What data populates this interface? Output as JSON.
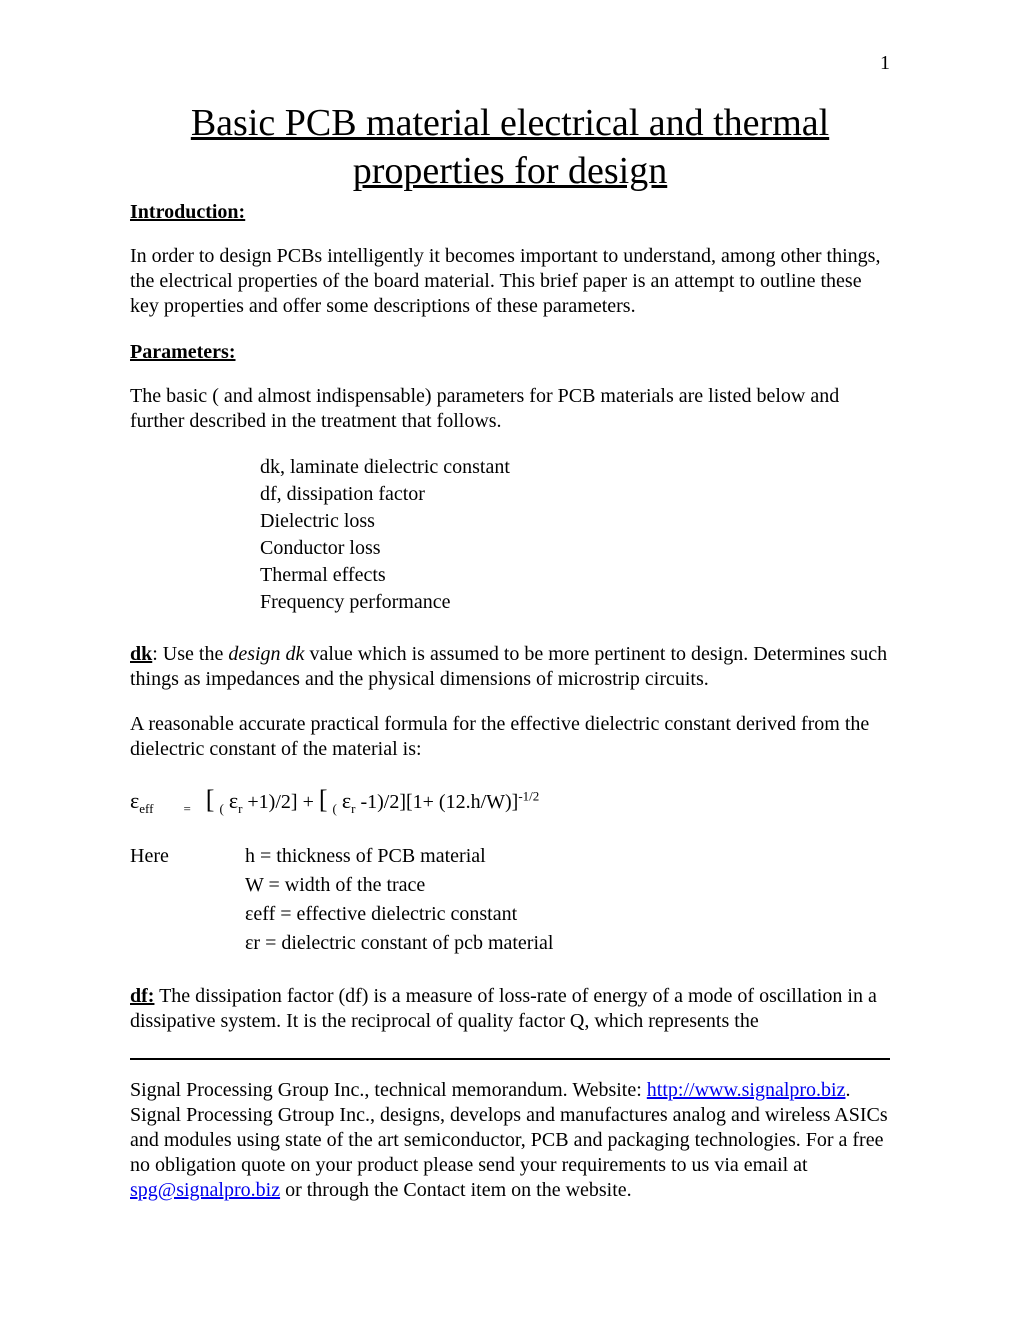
{
  "page_number": "1",
  "title": "Basic PCB material electrical and thermal properties for design",
  "intro_heading": "Introduction:",
  "intro_text": "In order to design PCBs intelligently it becomes important to understand, among other things, the electrical properties of the board material. This brief paper is an attempt to outline these key properties and offer some descriptions of these parameters.",
  "params_heading": "Parameters:",
  "params_text": "The basic ( and almost indispensable) parameters for PCB materials are listed below and further described in the treatment that follows.",
  "param_list": {
    "p1": "dk, laminate dielectric constant",
    "p2": "df,  dissipation factor",
    "p3": "Dielectric loss",
    "p4": "Conductor loss",
    "p5": "Thermal effects",
    "p6": "Frequency performance"
  },
  "dk": {
    "label": "dk",
    "colon": ": Use the ",
    "italic": "design dk",
    "rest": " value which is assumed to be more pertinent to design. Determines such things as impedances and the physical dimensions of microstrip circuits."
  },
  "formula_intro": "A reasonable accurate practical formula for the effective dielectric constant derived from the dielectric constant of the material is:",
  "formula": {
    "eps": "ε",
    "eff_sub": "eff",
    "r_sub": "r",
    "equals": "=",
    "part1_open": "[",
    "part1_paren": "(",
    "part1_body": " +1)/2] + ",
    "part2_open": "[",
    "part2_paren": "(",
    "part2_body": " -1)/2][1+ (12.h/W)]",
    "exp": "-1/2"
  },
  "here": {
    "label": "Here",
    "d1": "h = thickness of PCB material",
    "d2": "W = width of the trace",
    "d3_pre": "ε",
    "d3_sub": "eff",
    "d3_post": " = effective dielectric constant",
    "d4_pre": "ε",
    "d4_sub": "r",
    "d4_post": "  = dielectric constant of pcb material"
  },
  "df": {
    "label": "df:",
    "text": " The dissipation factor (df) is a measure of loss-rate of energy of a mode of oscillation in a dissipative system. It is the reciprocal of quality factor Q, which represents the"
  },
  "footer": {
    "t1": "Signal Processing Group Inc., technical memorandum. Website: ",
    "link1": "http://www.signalpro.biz",
    "t2": ". Signal Processing Gtroup Inc., designs, develops and manufactures analog and wireless ASICs and modules using state of the art semiconductor, PCB and packaging technologies. For a free no obligation quote on your product please send your requirements to us via email at ",
    "link2": "spg@signalpro.biz",
    "t3": " or through the Contact item on the website."
  },
  "colors": {
    "text": "#000000",
    "link": "#0000ee",
    "background": "#ffffff"
  },
  "typography": {
    "title_fontsize": 38,
    "body_fontsize": 20,
    "font_family": "Times New Roman"
  }
}
